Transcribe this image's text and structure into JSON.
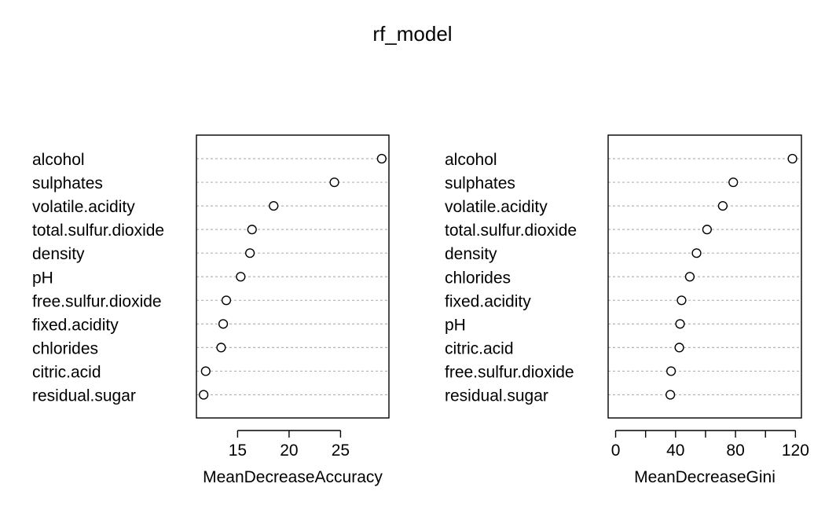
{
  "title": "rf_model",
  "chart_data": [
    {
      "type": "scatter",
      "subtype": "dotchart",
      "xlabel": "MeanDecreaseAccuracy",
      "xlim": [
        11.0,
        29.7
      ],
      "xticks": [
        15,
        20,
        25
      ],
      "grid": "dotted horizontal",
      "categories": [
        "alcohol",
        "sulphates",
        "volatile.acidity",
        "total.sulfur.dioxide",
        "density",
        "pH",
        "free.sulfur.dioxide",
        "fixed.acidity",
        "chlorides",
        "citric.acid",
        "residual.sugar"
      ],
      "values": [
        29.0,
        24.4,
        18.5,
        16.4,
        16.2,
        15.3,
        13.9,
        13.6,
        13.4,
        11.9,
        11.7
      ]
    },
    {
      "type": "scatter",
      "subtype": "dotchart",
      "xlabel": "MeanDecreaseGini",
      "xlim": [
        -5,
        124
      ],
      "xticks": [
        0,
        40,
        80,
        120
      ],
      "minor_ticks": [
        20,
        60,
        100
      ],
      "grid": "dotted horizontal",
      "categories": [
        "alcohol",
        "sulphates",
        "volatile.acidity",
        "total.sulfur.dioxide",
        "density",
        "chlorides",
        "fixed.acidity",
        "pH",
        "citric.acid",
        "free.sulfur.dioxide",
        "residual.sugar"
      ],
      "values": [
        118.0,
        78.5,
        71.5,
        61.0,
        54.0,
        49.5,
        44.0,
        43.0,
        42.5,
        37.0,
        36.5
      ]
    }
  ]
}
